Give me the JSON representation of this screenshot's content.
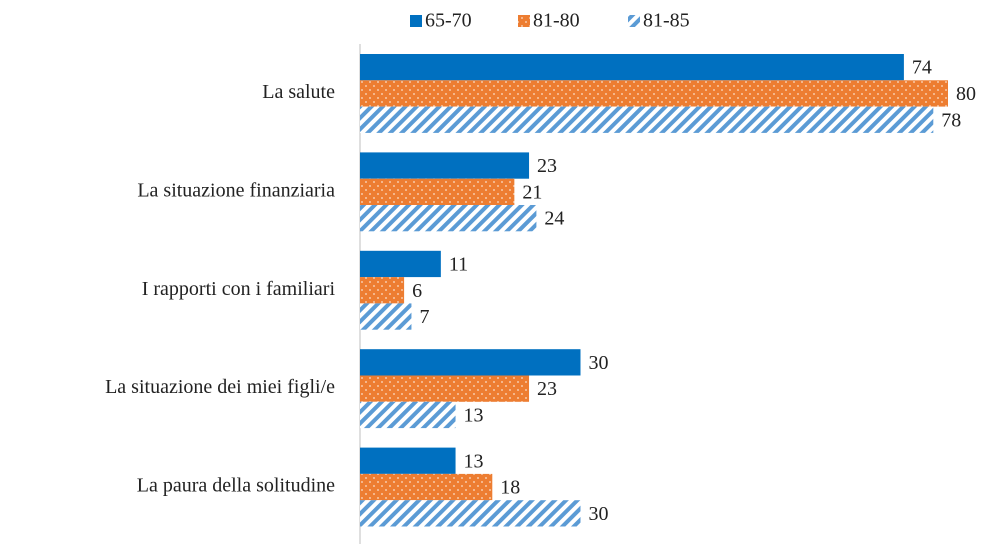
{
  "chart_data": {
    "type": "bar",
    "orientation": "horizontal",
    "categories": [
      "La salute",
      "La situazione finanziaria",
      "I rapporti con i familiari",
      "La situazione dei miei figli/e",
      "La paura della solitudine"
    ],
    "series": [
      {
        "name": "65-70",
        "color": "#0070c0",
        "values": [
          74,
          23,
          11,
          30,
          13
        ]
      },
      {
        "name": "81-80",
        "color": "#ed7d31",
        "values": [
          80,
          21,
          6,
          23,
          18
        ]
      },
      {
        "name": "81-85",
        "color": "#5b9bd5",
        "values": [
          78,
          24,
          7,
          13,
          30
        ]
      }
    ],
    "xlim": [
      0,
      80
    ],
    "legend": "top"
  }
}
